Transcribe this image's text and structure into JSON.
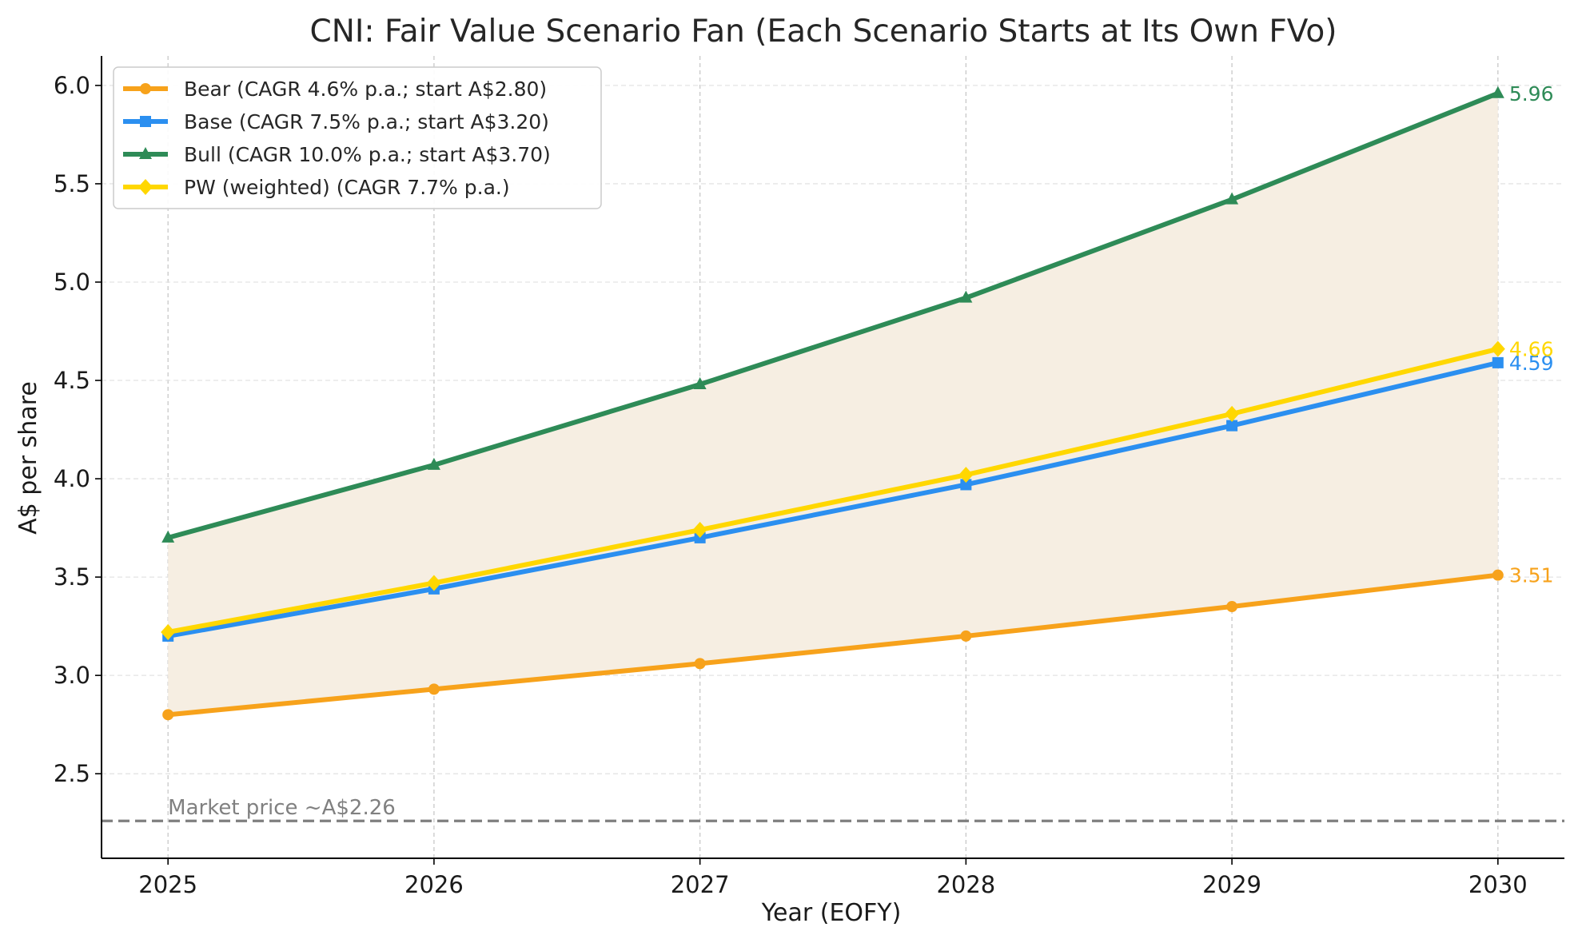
{
  "chart_data": {
    "type": "line",
    "title": "CNI: Fair Value Scenario Fan (Each Scenario Starts at Its Own FVo)",
    "xlabel": "Year (EOFY)",
    "ylabel": "A$ per share",
    "x": [
      2025,
      2026,
      2027,
      2028,
      2029,
      2030
    ],
    "x_tick_labels": [
      "2025",
      "2026",
      "2027",
      "2028",
      "2029",
      "2030"
    ],
    "xlim": [
      2024.75,
      2030.25
    ],
    "ylim": [
      2.07,
      6.15
    ],
    "y_ticks": [
      2.5,
      3.0,
      3.5,
      4.0,
      4.5,
      5.0,
      5.5,
      6.0
    ],
    "y_tick_labels": [
      "2.5",
      "3.0",
      "3.5",
      "4.0",
      "4.5",
      "5.0",
      "5.5",
      "6.0"
    ],
    "grid": true,
    "legend_position": "top-left",
    "fill_between": {
      "lower": "Bear",
      "upper": "Bull",
      "color": "#f6eee2"
    },
    "series": [
      {
        "name": "Bear (CAGR 4.6% p.a.; start A$2.80)",
        "key": "Bear",
        "color": "#f7a21b",
        "marker": "circle",
        "values": [
          2.8,
          2.93,
          3.06,
          3.2,
          3.35,
          3.51
        ],
        "end_label": "3.51"
      },
      {
        "name": "Base (CAGR 7.5% p.a.; start A$3.20)",
        "key": "Base",
        "color": "#2b8ff0",
        "marker": "square",
        "values": [
          3.2,
          3.44,
          3.7,
          3.97,
          4.27,
          4.59
        ],
        "end_label": "4.59"
      },
      {
        "name": "Bull (CAGR 10.0% p.a.; start A$3.70)",
        "key": "Bull",
        "color": "#2e8b57",
        "marker": "triangle",
        "values": [
          3.7,
          4.07,
          4.48,
          4.92,
          5.42,
          5.96
        ],
        "end_label": "5.96"
      },
      {
        "name": "PW (weighted) (CAGR 7.7% p.a.)",
        "key": "PW",
        "color": "#ffd700",
        "marker": "diamond",
        "values": [
          3.22,
          3.47,
          3.74,
          4.02,
          4.33,
          4.66
        ],
        "end_label": "4.66"
      }
    ],
    "reference_line": {
      "value": 2.26,
      "label": "Market price ~A$2.26",
      "color": "#7f7f7f",
      "style": "dashed"
    }
  }
}
